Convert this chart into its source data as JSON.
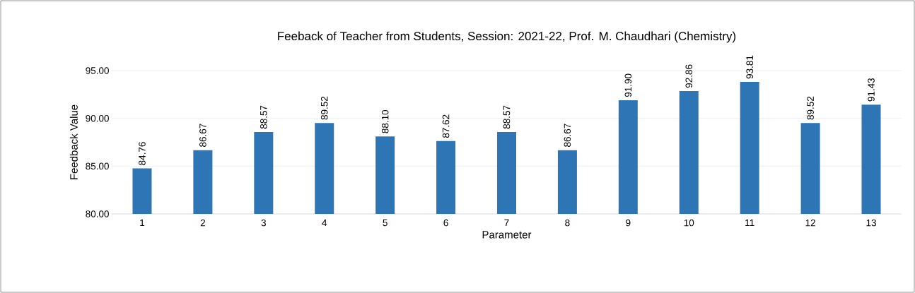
{
  "chart_data": {
    "type": "bar",
    "title": "Feeback of Teacher from Students, Session: 2021-22, Prof. M. Chaudhari (Chemistry)",
    "xlabel": "Parameter",
    "ylabel": "Feedback Value",
    "categories": [
      "1",
      "2",
      "3",
      "4",
      "5",
      "6",
      "7",
      "8",
      "9",
      "10",
      "11",
      "12",
      "13"
    ],
    "values": [
      84.76,
      86.67,
      88.57,
      89.52,
      88.1,
      87.62,
      88.57,
      86.67,
      91.9,
      92.86,
      93.81,
      89.52,
      91.43
    ],
    "value_labels": [
      "84.76",
      "86.67",
      "88.57",
      "89.52",
      "88.10",
      "87.62",
      "88.57",
      "86.67",
      "91.90",
      "92.86",
      "93.81",
      "89.52",
      "91.43"
    ],
    "color": "#2e75b6",
    "ylim": [
      80,
      95
    ],
    "yticks": [
      {
        "value": 80,
        "label": "80.00"
      },
      {
        "value": 85,
        "label": "85.00"
      },
      {
        "value": 90,
        "label": "90.00"
      },
      {
        "value": 95,
        "label": "95.00"
      }
    ],
    "grid": "y"
  }
}
